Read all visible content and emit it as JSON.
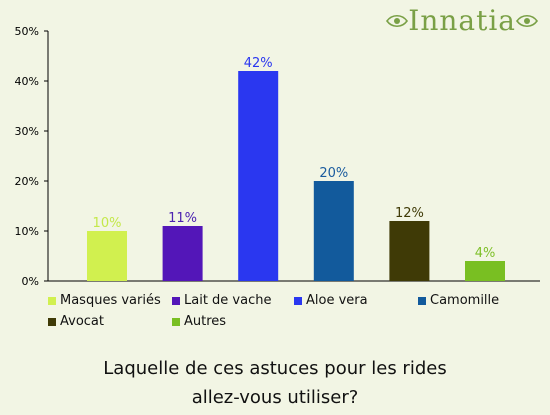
{
  "brand": {
    "name": "Innatia"
  },
  "chart_data": {
    "type": "bar",
    "categories": [
      "Masques variés",
      "Lait de vache",
      "Aloe vera",
      "Camomille",
      "Avocat",
      "Autres"
    ],
    "values": [
      10,
      11,
      42,
      20,
      12,
      4
    ],
    "value_labels": [
      "10%",
      "11%",
      "42%",
      "20%",
      "12%",
      "4%"
    ],
    "colors": [
      "#d1f04f",
      "#5316b8",
      "#2a37f0",
      "#125a9c",
      "#3f3a06",
      "#79bf22"
    ],
    "label_colors": [
      "#c4e84a",
      "#4c22b0",
      "#2a37f0",
      "#1a5b9e",
      "#3f3a06",
      "#7fc02a"
    ],
    "ylim": [
      0,
      50
    ],
    "yticks": [
      "0%",
      "10%",
      "20%",
      "30%",
      "40%",
      "50%"
    ],
    "grid": false,
    "legend_position": "bottom",
    "title": "",
    "xlabel": "",
    "ylabel": ""
  },
  "question": {
    "line1": "Laquelle de ces astuces pour les rides",
    "line2": "allez-vous utiliser?"
  }
}
